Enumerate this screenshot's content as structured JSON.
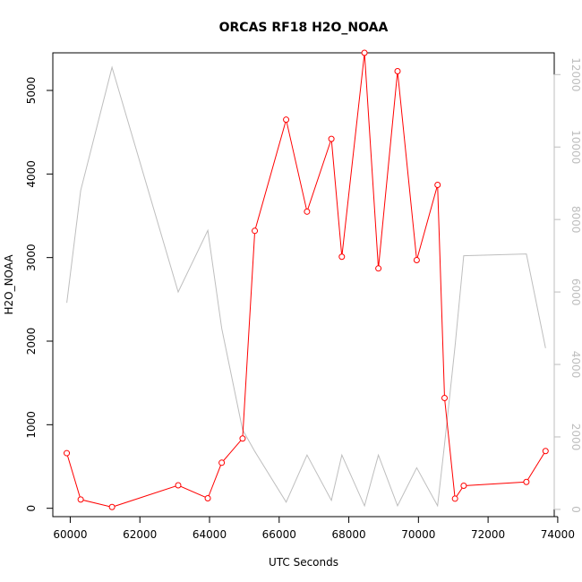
{
  "chart_data": {
    "type": "line",
    "title": "ORCAS RF18 H2O_NOAA",
    "xlabel": "UTC Seconds",
    "ylabel": "H2O_NOAA",
    "xlim": [
      59500,
      73900
    ],
    "ylim": [
      -100,
      5450
    ],
    "y2lim": [
      -200,
      12600
    ],
    "x_ticks": [
      60000,
      62000,
      64000,
      66000,
      68000,
      70000,
      72000,
      74000
    ],
    "x_tick_labels": [
      "60000",
      "62000",
      "64000",
      "66000",
      "68000",
      "70000",
      "72000",
      "74000"
    ],
    "y_ticks": [
      0,
      1000,
      2000,
      3000,
      4000,
      5000
    ],
    "y_tick_labels": [
      "0",
      "1000",
      "2000",
      "3000",
      "4000",
      "5000"
    ],
    "y2_ticks": [
      0,
      2000,
      4000,
      6000,
      8000,
      10000,
      12000
    ],
    "y2_tick_labels": [
      "0",
      "2000",
      "4000",
      "6000",
      "8000",
      "10000",
      "12000"
    ],
    "grid": false,
    "series": [
      {
        "color": "#ff0000",
        "axis": "left",
        "markers": "open-circle",
        "x": [
          59900,
          60300,
          61200,
          63100,
          63950,
          64350,
          64950,
          65300,
          66200,
          66800,
          67500,
          67800,
          68450,
          68850,
          69400,
          69950,
          70550,
          70750,
          71050,
          71300,
          73100,
          73650
        ],
        "y": [
          660,
          105,
          15,
          275,
          120,
          545,
          835,
          3320,
          4650,
          3550,
          4420,
          3010,
          5450,
          2870,
          5230,
          2970,
          3870,
          1320,
          115,
          270,
          315,
          685
        ]
      },
      {
        "color": "#bebebe",
        "axis": "right",
        "markers": "none",
        "x": [
          59900,
          60300,
          61200,
          63100,
          63950,
          64350,
          64950,
          65300,
          66200,
          66800,
          67500,
          67800,
          68450,
          68850,
          69400,
          69950,
          70550,
          70750,
          71050,
          71300,
          73100,
          73650
        ],
        "y": [
          5700,
          8800,
          12200,
          6000,
          7700,
          5000,
          2200,
          1600,
          200,
          1500,
          250,
          1500,
          100,
          1500,
          100,
          1150,
          100,
          1800,
          4500,
          7000,
          7050,
          4450
        ]
      }
    ]
  }
}
